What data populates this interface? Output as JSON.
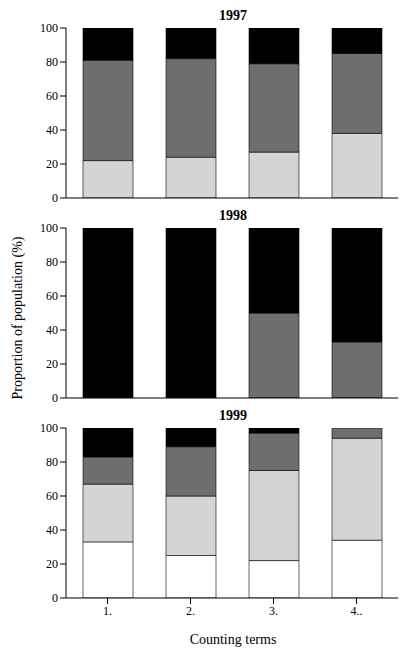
{
  "ylabel": "Proportion of population (%)",
  "xlabel": "Counting terms",
  "chart_data": [
    {
      "type": "bar",
      "title": "1997",
      "stacked": true,
      "categories": [
        null,
        null,
        null,
        null
      ],
      "ylim": [
        0,
        100
      ],
      "yticks": [
        0,
        20,
        40,
        60,
        80,
        100
      ],
      "tick_labels": "y",
      "series": [
        {
          "color": "#d4d4d4",
          "values": [
            22,
            24,
            27,
            38
          ]
        },
        {
          "color": "#6e6e6e",
          "values": [
            59,
            58,
            52,
            47
          ]
        },
        {
          "color": "#000000",
          "values": [
            19,
            18,
            21,
            15
          ]
        }
      ]
    },
    {
      "type": "bar",
      "title": "1998",
      "stacked": true,
      "categories": [
        null,
        null,
        null,
        null
      ],
      "ylim": [
        0,
        100
      ],
      "yticks": [
        0,
        20,
        40,
        60,
        80,
        100
      ],
      "tick_labels": "y",
      "series": [
        {
          "color": "#6e6e6e",
          "values": [
            0,
            0,
            50,
            33
          ]
        },
        {
          "color": "#000000",
          "values": [
            100,
            100,
            50,
            67
          ]
        }
      ]
    },
    {
      "type": "bar",
      "title": "1999",
      "stacked": true,
      "categories": [
        "1.",
        "2.",
        "3.",
        "4.."
      ],
      "ylim": [
        0,
        100
      ],
      "yticks": [
        0,
        20,
        40,
        60,
        80,
        100
      ],
      "series": [
        {
          "color": "#ffffff",
          "values": [
            33,
            25,
            22,
            34
          ]
        },
        {
          "color": "#d4d4d4",
          "values": [
            34,
            35,
            53,
            60
          ]
        },
        {
          "color": "#6e6e6e",
          "values": [
            16,
            29,
            22,
            6
          ]
        },
        {
          "color": "#000000",
          "values": [
            17,
            11,
            3,
            0
          ]
        }
      ]
    }
  ]
}
